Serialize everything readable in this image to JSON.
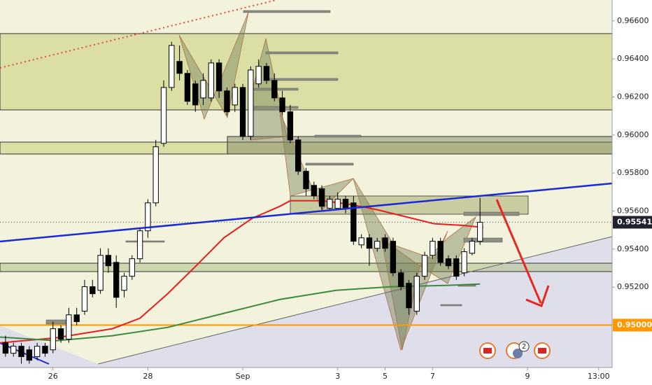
{
  "chart_data": {
    "type": "candlestick",
    "open": [
      0.94907,
      0.94852,
      0.94889,
      0.9487,
      0.94834,
      0.94889,
      0.9487,
      0.94981,
      0.94926,
      0.95054,
      0.95073,
      0.95202,
      0.95183,
      0.95367,
      0.9533,
      0.95183,
      0.95257,
      0.95349,
      0.95496,
      0.95643,
      0.95956,
      0.9625,
      0.96387,
      0.96324,
      0.96269,
      0.96195,
      0.96195,
      0.96379,
      0.96232,
      0.96158,
      0.9625,
      0.95993,
      0.96269,
      0.96361,
      0.96287,
      0.96195,
      0.96122,
      0.95974,
      0.95809,
      0.95735,
      0.95717,
      0.95614,
      0.95614,
      0.95662,
      0.95643,
      0.95422,
      0.95459,
      0.95404,
      0.95459,
      0.95441,
      0.95275,
      0.9522,
      0.95073,
      0.95257,
      0.95367,
      0.95441,
      0.95349,
      0.95349,
      0.95275,
      0.95378,
      0.95441
    ],
    "high": [
      0.94944,
      0.94907,
      0.94907,
      0.94889,
      0.94907,
      0.94907,
      0.95018,
      0.94999,
      0.95091,
      0.95091,
      0.95238,
      0.95238,
      0.95404,
      0.95404,
      0.95367,
      0.95275,
      0.95367,
      0.95514,
      0.95662,
      0.95974,
      0.96287,
      0.9649,
      0.96471,
      0.96342,
      0.96287,
      0.96324,
      0.96398,
      0.96398,
      0.9625,
      0.96269,
      0.96269,
      0.96361,
      0.96398,
      0.96379,
      0.96324,
      0.96232,
      0.96158,
      0.95993,
      0.95827,
      0.95754,
      0.95735,
      0.9568,
      0.95698,
      0.9568,
      0.9568,
      0.95478,
      0.95478,
      0.95459,
      0.95478,
      0.95459,
      0.95294,
      0.95238,
      0.95275,
      0.95386,
      0.95459,
      0.95459,
      0.95367,
      0.95367,
      0.95404,
      0.95459,
      0.95669
    ],
    "low": [
      0.94834,
      0.94834,
      0.94797,
      0.94797,
      0.94815,
      0.94834,
      0.94852,
      0.94907,
      0.94907,
      0.94999,
      0.95054,
      0.95146,
      0.95165,
      0.95275,
      0.95091,
      0.95146,
      0.95238,
      0.9533,
      0.95459,
      0.95625,
      0.95938,
      0.96232,
      0.96287,
      0.96158,
      0.96122,
      0.96158,
      0.96177,
      0.96195,
      0.96103,
      0.96122,
      0.95974,
      0.95974,
      0.9625,
      0.96269,
      0.96177,
      0.96103,
      0.95956,
      0.9579,
      0.9568,
      0.95662,
      0.95606,
      0.95606,
      0.95606,
      0.95588,
      0.95422,
      0.95404,
      0.95312,
      0.95386,
      0.95386,
      0.95257,
      0.95183,
      0.95054,
      0.95054,
      0.95238,
      0.95349,
      0.95312,
      0.95294,
      0.95238,
      0.95257,
      0.95367,
      0.95422
    ],
    "close": [
      0.94852,
      0.94889,
      0.94834,
      0.94815,
      0.94889,
      0.94852,
      0.94981,
      0.94926,
      0.95054,
      0.95018,
      0.95202,
      0.95165,
      0.95367,
      0.95312,
      0.95146,
      0.95257,
      0.95349,
      0.95496,
      0.95643,
      0.95938,
      0.9625,
      0.96471,
      0.96324,
      0.96177,
      0.96158,
      0.96287,
      0.96379,
      0.96232,
      0.96122,
      0.9625,
      0.95993,
      0.96342,
      0.96361,
      0.96287,
      0.96195,
      0.96122,
      0.95974,
      0.95809,
      0.95717,
      0.9568,
      0.95625,
      0.95662,
      0.95662,
      0.95614,
      0.95441,
      0.95459,
      0.95404,
      0.95441,
      0.95404,
      0.95275,
      0.95202,
      0.95091,
      0.95257,
      0.95367,
      0.95441,
      0.9533,
      0.95312,
      0.95257,
      0.95386,
      0.95441,
      0.95541
    ],
    "up_color": "#ffffff",
    "down_color": "#000000",
    "moving_averages": [
      {
        "color": "#e81e1e",
        "x": [
          -0.7,
          6.4,
          13.5,
          17,
          20.5,
          24.1,
          27.6,
          31.2,
          34.7,
          36.0,
          40,
          43.5,
          47.1,
          50.6,
          54.2,
          57.7,
          60.4
        ],
        "values": [
          0.94907,
          0.94933,
          0.94981,
          0.95036,
          0.95165,
          0.95312,
          0.95459,
          0.95562,
          0.95625,
          0.95654,
          0.95654,
          0.95636,
          0.95606,
          0.9557,
          0.95533,
          0.95525,
          0.95514
        ]
      },
      {
        "color": "#3c8a3c",
        "x": [
          -0.7,
          6.4,
          13.5,
          20.5,
          27.6,
          34.7,
          41.8,
          48.8,
          55.9,
          60
        ],
        "values": [
          0.94937,
          0.94918,
          0.94944,
          0.94988,
          0.95062,
          0.95135,
          0.95183,
          0.95202,
          0.95209,
          0.95216
        ]
      }
    ],
    "hline": {
      "value": 0.95,
      "label": "0.95000",
      "color": "#ff9800"
    },
    "last_price": {
      "value": 0.95541,
      "label": "0.95541"
    },
    "xlim": [
      -0.7,
      76.7
    ],
    "xticks": [
      {
        "value": 6,
        "label": "26"
      },
      {
        "value": 18,
        "label": "28"
      },
      {
        "value": 30,
        "label": "Sep"
      },
      {
        "value": 42,
        "label": "3"
      },
      {
        "value": 48,
        "label": "5"
      },
      {
        "value": 54,
        "label": "7"
      },
      {
        "value": 66,
        "label": "9"
      },
      {
        "value": 75,
        "label": "13:00"
      }
    ],
    "ylim": [
      0.94777,
      0.9671
    ],
    "yticks": [
      {
        "value": 0.966,
        "label": "0.96600"
      },
      {
        "value": 0.964,
        "label": "0.96400"
      },
      {
        "value": 0.962,
        "label": "0.96200"
      },
      {
        "value": 0.96,
        "label": "0.96000"
      },
      {
        "value": 0.958,
        "label": "0.95800"
      },
      {
        "value": 0.956,
        "label": "0.95600"
      },
      {
        "value": 0.954,
        "label": "0.95400"
      },
      {
        "value": 0.952,
        "label": "0.95200"
      }
    ],
    "event_badge": "2"
  }
}
